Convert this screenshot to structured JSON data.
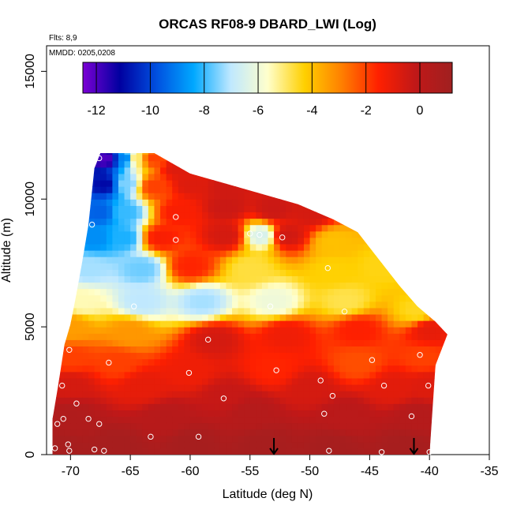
{
  "chart_data": {
    "type": "heatmap",
    "title": "ORCAS RF08-9 DBARD_LWI (Log)",
    "xlabel": "Latitude (deg N)",
    "ylabel": "Altitude (m)",
    "xlim": [
      -72,
      -35
    ],
    "ylim": [
      0,
      16000
    ],
    "xticks": [
      -70,
      -65,
      -60,
      -55,
      -50,
      -45,
      -40,
      -35
    ],
    "yticks": [
      0,
      5000,
      10000,
      15000
    ],
    "notes": [
      "Flts: 8,9",
      "MMDD: 0205,0208"
    ],
    "colorbar": {
      "range": [
        -12.5,
        1.2
      ],
      "ticks": [
        -12,
        -10,
        -8,
        -6,
        -4,
        -2,
        0
      ],
      "colors": [
        "#7b00d4",
        "#0000a0",
        "#0050e0",
        "#00a8ff",
        "#bfe8ff",
        "#ffffcc",
        "#ffd000",
        "#ff8000",
        "#ff2000",
        "#c01818",
        "#a02020"
      ]
    },
    "profile": [
      [
        -71.5,
        0,
        1400
      ],
      [
        -71.0,
        0,
        2800
      ],
      [
        -70.5,
        0,
        4300
      ],
      [
        -70.0,
        0,
        5100
      ],
      [
        -69.5,
        0,
        6300
      ],
      [
        -69.0,
        0,
        7600
      ],
      [
        -68.5,
        0,
        9000
      ],
      [
        -68.0,
        0,
        11200
      ],
      [
        -67.5,
        0,
        11800
      ],
      [
        -63.0,
        0,
        11800
      ],
      [
        -60.0,
        0,
        11000
      ],
      [
        -57.0,
        0,
        10600
      ],
      [
        -54.0,
        0,
        10200
      ],
      [
        -51.0,
        0,
        9800
      ],
      [
        -48.0,
        0,
        9200
      ],
      [
        -46.0,
        0,
        8700
      ],
      [
        -44.5,
        0,
        7800
      ],
      [
        -42.5,
        0,
        6600
      ],
      [
        -41.0,
        0,
        5800
      ],
      [
        -39.5,
        0,
        5200
      ],
      [
        -38.5,
        0,
        4700
      ],
      [
        -39.5,
        0,
        3500
      ],
      [
        -40.0,
        0,
        0
      ]
    ],
    "markers_x": [
      -53,
      -41.3
    ],
    "points": [
      [
        -67.6,
        11600
      ],
      [
        -68.2,
        9000
      ],
      [
        -61.2,
        9300
      ],
      [
        -61.2,
        8400
      ],
      [
        -55.0,
        8650
      ],
      [
        -54.2,
        8600
      ],
      [
        -52.3,
        8500
      ],
      [
        -48.5,
        7300
      ],
      [
        -64.7,
        5800
      ],
      [
        -53.3,
        5800
      ],
      [
        -47.1,
        5600
      ],
      [
        -58.5,
        4500
      ],
      [
        -70.1,
        4100
      ],
      [
        -66.8,
        3600
      ],
      [
        -60.1,
        3200
      ],
      [
        -52.8,
        3300
      ],
      [
        -44.8,
        3700
      ],
      [
        -40.8,
        3900
      ],
      [
        -49.1,
        2900
      ],
      [
        -43.8,
        2700
      ],
      [
        -40.1,
        2700
      ],
      [
        -70.7,
        2700
      ],
      [
        -57.2,
        2200
      ],
      [
        -48.1,
        2300
      ],
      [
        -69.5,
        2000
      ],
      [
        -70.6,
        1400
      ],
      [
        -68.5,
        1400
      ],
      [
        -71.1,
        1200
      ],
      [
        -67.6,
        1200
      ],
      [
        -48.8,
        1600
      ],
      [
        -41.5,
        1500
      ],
      [
        -63.3,
        700
      ],
      [
        -59.3,
        700
      ],
      [
        -70.2,
        400
      ],
      [
        -71.3,
        250
      ],
      [
        -70.1,
        150
      ],
      [
        -68.0,
        200
      ],
      [
        -67.2,
        150
      ],
      [
        -48.4,
        150
      ],
      [
        -44.0,
        100
      ],
      [
        -40.0,
        100
      ]
    ]
  }
}
